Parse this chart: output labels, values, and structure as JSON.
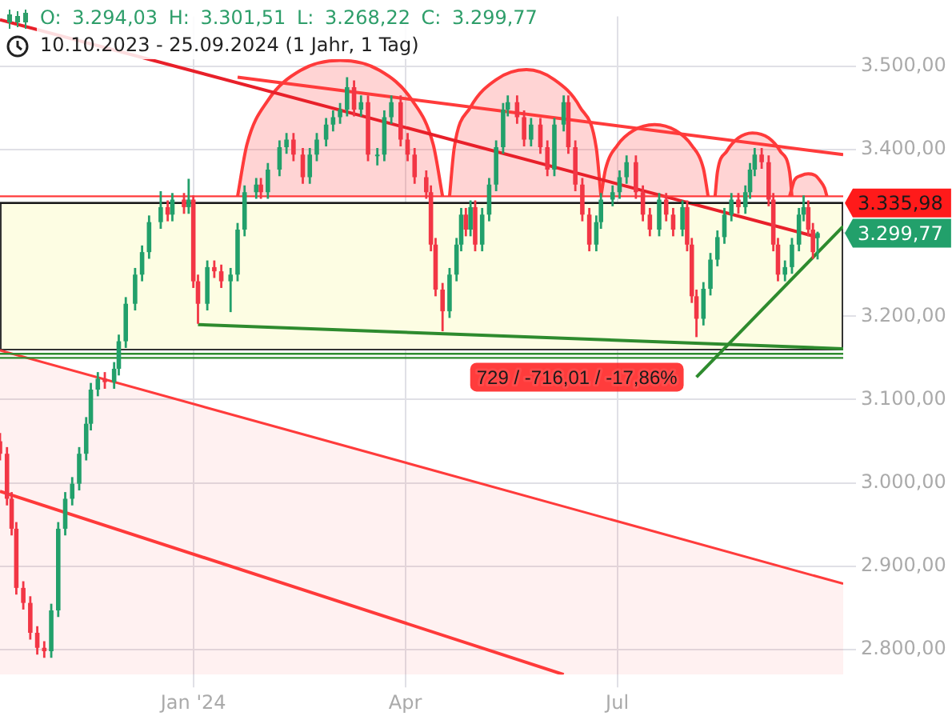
{
  "chart_data": {
    "type": "candlestick",
    "title": "O: 3.294,03 H: 3.301,51 L: 3.268,22 C: 3.299,77",
    "subtitle": "10.10.2023 - 25.09.2024 (1 Jahr, 1 Tag)",
    "x": [
      "2023-10-10",
      "2023-10-13",
      "2023-10-15",
      "2023-10-17",
      "2023-10-20",
      "2023-10-23",
      "2023-10-26",
      "2023-10-29",
      "2023-11-01",
      "2023-11-04",
      "2023-11-07",
      "2023-11-10",
      "2023-11-13",
      "2023-11-16",
      "2023-11-18",
      "2023-11-21",
      "2023-11-24",
      "2023-11-28",
      "2023-11-30",
      "2023-12-03",
      "2023-12-07",
      "2023-12-10",
      "2023-12-13",
      "2023-12-18",
      "2023-12-21",
      "2023-12-23",
      "2023-12-28",
      "2023-12-30",
      "2024-01-01",
      "2024-01-03",
      "2024-01-07",
      "2024-01-10",
      "2024-01-13",
      "2024-01-17",
      "2024-01-20",
      "2024-01-23",
      "2024-01-28",
      "2024-01-30",
      "2024-02-02",
      "2024-02-07",
      "2024-02-10",
      "2024-02-13",
      "2024-02-17",
      "2024-02-20",
      "2024-02-23",
      "2024-02-27",
      "2024-03-01",
      "2024-03-04",
      "2024-03-07",
      "2024-03-10",
      "2024-03-13",
      "2024-03-16",
      "2024-03-20",
      "2024-03-23",
      "2024-03-26",
      "2024-03-30",
      "2024-04-02",
      "2024-04-05",
      "2024-04-10",
      "2024-04-12",
      "2024-04-14",
      "2024-04-17",
      "2024-04-20",
      "2024-04-23",
      "2024-04-25",
      "2024-04-27",
      "2024-04-29",
      "2024-05-01",
      "2024-05-04",
      "2024-05-07",
      "2024-05-10",
      "2024-05-13",
      "2024-05-15",
      "2024-05-19",
      "2024-05-22",
      "2024-05-25",
      "2024-05-29",
      "2024-06-01",
      "2024-06-04",
      "2024-06-08",
      "2024-06-10",
      "2024-06-13",
      "2024-06-16",
      "2024-06-19",
      "2024-06-22",
      "2024-06-24",
      "2024-06-29",
      "2024-07-02",
      "2024-07-05",
      "2024-07-09",
      "2024-07-12",
      "2024-07-15",
      "2024-07-19",
      "2024-07-22",
      "2024-07-25",
      "2024-07-29",
      "2024-07-31",
      "2024-08-02",
      "2024-08-04",
      "2024-08-07",
      "2024-08-10",
      "2024-08-13",
      "2024-08-16",
      "2024-08-19",
      "2024-08-22",
      "2024-08-25",
      "2024-08-27",
      "2024-08-29",
      "2024-09-01",
      "2024-09-04",
      "2024-09-06",
      "2024-09-08",
      "2024-09-11",
      "2024-09-14",
      "2024-09-17",
      "2024-09-19",
      "2024-09-21",
      "2024-09-23",
      "2024-09-25"
    ],
    "ohlc": [
      [
        3050,
        3060,
        3027,
        3035
      ],
      [
        3035,
        3043,
        2973,
        2981
      ],
      [
        2981,
        2989,
        2937,
        2945
      ],
      [
        2945,
        2953,
        2866,
        2874
      ],
      [
        2874,
        2882,
        2848,
        2856
      ],
      [
        2856,
        2864,
        2812,
        2820
      ],
      [
        2820,
        2828,
        2794,
        2802
      ],
      [
        2802,
        2810,
        2790,
        2798
      ],
      [
        2798,
        2855,
        2790,
        2847
      ],
      [
        2847,
        2953,
        2839,
        2945
      ],
      [
        2945,
        2989,
        2937,
        2981
      ],
      [
        2981,
        3007,
        2973,
        2999
      ],
      [
        2999,
        3043,
        2991,
        3035
      ],
      [
        3035,
        3079,
        3027,
        3071
      ],
      [
        3071,
        3120,
        3063,
        3112
      ],
      [
        3112,
        3133,
        3104,
        3125
      ],
      [
        3125,
        3133,
        3113,
        3121
      ],
      [
        3121,
        3145,
        3113,
        3137
      ],
      [
        3137,
        3178,
        3129,
        3170
      ],
      [
        3170,
        3223,
        3162,
        3215
      ],
      [
        3215,
        3258,
        3207,
        3250
      ],
      [
        3250,
        3285,
        3242,
        3277
      ],
      [
        3277,
        3321,
        3269,
        3313
      ],
      [
        3313,
        3350,
        3305,
        3331
      ],
      [
        3331,
        3339,
        3314,
        3322
      ],
      [
        3322,
        3348,
        3314,
        3340
      ],
      [
        3340,
        3348,
        3323,
        3331
      ],
      [
        3331,
        3365,
        3323,
        3340
      ],
      [
        3340,
        3345,
        3234,
        3242
      ],
      [
        3242,
        3250,
        3191,
        3215
      ],
      [
        3215,
        3267,
        3207,
        3259
      ],
      [
        3259,
        3267,
        3246,
        3254
      ],
      [
        3254,
        3262,
        3234,
        3242
      ],
      [
        3242,
        3258,
        3205,
        3250
      ],
      [
        3250,
        3312,
        3242,
        3304
      ],
      [
        3304,
        3357,
        3296,
        3349
      ],
      [
        3349,
        3366,
        3341,
        3358
      ],
      [
        3358,
        3366,
        3341,
        3349
      ],
      [
        3349,
        3384,
        3341,
        3376
      ],
      [
        3376,
        3411,
        3368,
        3403
      ],
      [
        3403,
        3420,
        3395,
        3412
      ],
      [
        3412,
        3420,
        3386,
        3394
      ],
      [
        3394,
        3402,
        3359,
        3367
      ],
      [
        3367,
        3402,
        3359,
        3394
      ],
      [
        3394,
        3420,
        3386,
        3412
      ],
      [
        3412,
        3438,
        3404,
        3430
      ],
      [
        3430,
        3447,
        3422,
        3439
      ],
      [
        3439,
        3456,
        3431,
        3448
      ],
      [
        3448,
        3487,
        3440,
        3475
      ],
      [
        3475,
        3483,
        3440,
        3448
      ],
      [
        3448,
        3465,
        3440,
        3457
      ],
      [
        3457,
        3465,
        3386,
        3394
      ],
      [
        3394,
        3402,
        3381,
        3394
      ],
      [
        3394,
        3447,
        3386,
        3439
      ],
      [
        3439,
        3465,
        3431,
        3457
      ],
      [
        3457,
        3465,
        3404,
        3412
      ],
      [
        3412,
        3420,
        3386,
        3394
      ],
      [
        3394,
        3402,
        3359,
        3367
      ],
      [
        3367,
        3375,
        3341,
        3349
      ],
      [
        3349,
        3357,
        3278,
        3286
      ],
      [
        3286,
        3294,
        3224,
        3232
      ],
      [
        3232,
        3240,
        3182,
        3206
      ],
      [
        3206,
        3258,
        3198,
        3250
      ],
      [
        3250,
        3294,
        3242,
        3286
      ],
      [
        3286,
        3330,
        3278,
        3322
      ],
      [
        3322,
        3330,
        3296,
        3304
      ],
      [
        3304,
        3339,
        3296,
        3331
      ],
      [
        3331,
        3339,
        3278,
        3286
      ],
      [
        3286,
        3330,
        3278,
        3322
      ],
      [
        3322,
        3366,
        3314,
        3358
      ],
      [
        3358,
        3411,
        3350,
        3403
      ],
      [
        3403,
        3456,
        3395,
        3448
      ],
      [
        3448,
        3465,
        3440,
        3457
      ],
      [
        3457,
        3465,
        3431,
        3439
      ],
      [
        3439,
        3447,
        3404,
        3412
      ],
      [
        3412,
        3438,
        3404,
        3430
      ],
      [
        3430,
        3438,
        3395,
        3403
      ],
      [
        3403,
        3411,
        3368,
        3376
      ],
      [
        3376,
        3438,
        3368,
        3430
      ],
      [
        3430,
        3465,
        3422,
        3457
      ],
      [
        3457,
        3465,
        3395,
        3403
      ],
      [
        3403,
        3411,
        3350,
        3358
      ],
      [
        3358,
        3366,
        3314,
        3322
      ],
      [
        3322,
        3330,
        3278,
        3286
      ],
      [
        3286,
        3321,
        3278,
        3313
      ],
      [
        3313,
        3348,
        3305,
        3340
      ],
      [
        3340,
        3357,
        3332,
        3349
      ],
      [
        3349,
        3375,
        3341,
        3367
      ],
      [
        3367,
        3393,
        3359,
        3385
      ],
      [
        3385,
        3393,
        3341,
        3349
      ],
      [
        3349,
        3357,
        3314,
        3322
      ],
      [
        3322,
        3330,
        3296,
        3304
      ],
      [
        3304,
        3348,
        3296,
        3340
      ],
      [
        3340,
        3348,
        3314,
        3322
      ],
      [
        3322,
        3330,
        3296,
        3304
      ],
      [
        3304,
        3339,
        3296,
        3331
      ],
      [
        3331,
        3339,
        3278,
        3286
      ],
      [
        3286,
        3294,
        3216,
        3224
      ],
      [
        3224,
        3232,
        3175,
        3197
      ],
      [
        3197,
        3241,
        3189,
        3233
      ],
      [
        3233,
        3276,
        3225,
        3268
      ],
      [
        3268,
        3303,
        3260,
        3295
      ],
      [
        3295,
        3330,
        3287,
        3322
      ],
      [
        3322,
        3348,
        3314,
        3340
      ],
      [
        3340,
        3348,
        3323,
        3331
      ],
      [
        3331,
        3357,
        3323,
        3349
      ],
      [
        3349,
        3384,
        3341,
        3376
      ],
      [
        3376,
        3402,
        3368,
        3394
      ],
      [
        3394,
        3402,
        3377,
        3385
      ],
      [
        3385,
        3393,
        3332,
        3340
      ],
      [
        3340,
        3348,
        3278,
        3286
      ],
      [
        3286,
        3294,
        3242,
        3250
      ],
      [
        3250,
        3267,
        3242,
        3259
      ],
      [
        3259,
        3294,
        3251,
        3286
      ],
      [
        3286,
        3330,
        3278,
        3322
      ],
      [
        3322,
        3345,
        3314,
        3331
      ],
      [
        3331,
        3339,
        3296,
        3304
      ],
      [
        3304,
        3312,
        3269,
        3277
      ],
      [
        3294.03,
        3301.51,
        3268.22,
        3299.77
      ]
    ],
    "colors": [
      "#f23645",
      "#f23645",
      "#f23645",
      "#f23645",
      "#f23645",
      "#f23645",
      "#f23645",
      "#f23645",
      "#22a06b",
      "#22a06b",
      "#22a06b",
      "#22a06b",
      "#22a06b",
      "#22a06b",
      "#22a06b",
      "#22a06b",
      "#f23645",
      "#22a06b",
      "#22a06b",
      "#22a06b",
      "#22a06b",
      "#22a06b",
      "#22a06b",
      "#22a06b",
      "#f23645",
      "#22a06b",
      "#f23645",
      "#22a06b",
      "#f23645",
      "#f23645",
      "#22a06b",
      "#f23645",
      "#f23645",
      "#22a06b",
      "#22a06b",
      "#22a06b",
      "#22a06b",
      "#f23645",
      "#22a06b",
      "#22a06b",
      "#22a06b",
      "#f23645",
      "#f23645",
      "#22a06b",
      "#22a06b",
      "#22a06b",
      "#22a06b",
      "#22a06b",
      "#22a06b",
      "#f23645",
      "#22a06b",
      "#f23645",
      "#22a06b",
      "#22a06b",
      "#22a06b",
      "#f23645",
      "#f23645",
      "#f23645",
      "#f23645",
      "#f23645",
      "#f23645",
      "#f23645",
      "#22a06b",
      "#22a06b",
      "#22a06b",
      "#f23645",
      "#22a06b",
      "#f23645",
      "#22a06b",
      "#22a06b",
      "#22a06b",
      "#22a06b",
      "#22a06b",
      "#f23645",
      "#f23645",
      "#22a06b",
      "#f23645",
      "#f23645",
      "#22a06b",
      "#22a06b",
      "#f23645",
      "#f23645",
      "#f23645",
      "#f23645",
      "#22a06b",
      "#22a06b",
      "#22a06b",
      "#22a06b",
      "#22a06b",
      "#f23645",
      "#f23645",
      "#f23645",
      "#22a06b",
      "#f23645",
      "#f23645",
      "#22a06b",
      "#f23645",
      "#f23645",
      "#f23645",
      "#22a06b",
      "#22a06b",
      "#22a06b",
      "#22a06b",
      "#22a06b",
      "#f23645",
      "#22a06b",
      "#22a06b",
      "#22a06b",
      "#f23645",
      "#f23645",
      "#f23645",
      "#f23645",
      "#22a06b",
      "#22a06b",
      "#22a06b",
      "#22a06b",
      "#f23645",
      "#f23645",
      "#22a06b"
    ],
    "series": [
      {
        "type": "line",
        "color": "#e8202a",
        "x": [
          "2023-10-10",
          "2024-09-25"
        ],
        "values": [
          3556,
          3295
        ]
      },
      {
        "type": "line",
        "color": "#ff3b3b",
        "x": [
          "2024-01-20",
          "2024-10-06"
        ],
        "values": [
          3487,
          3394
        ]
      },
      {
        "type": "line",
        "color": "#2e8b2e",
        "x": [
          "2024-01-03",
          "2024-10-06"
        ],
        "values": [
          3190,
          3161
        ]
      },
      {
        "type": "line",
        "color": "#2e8b2e",
        "x": [
          "2024-08-04",
          "2024-10-06"
        ],
        "values": [
          3127,
          3308
        ]
      },
      {
        "type": "area",
        "color": "#ff3b3b",
        "x": [
          "2023-10-10",
          "2024-10-06"
        ],
        "values": [
          3159,
          2879
        ]
      },
      {
        "type": "line",
        "color": "#ff3b3b",
        "x": [
          "2023-10-10",
          "2024-06-08"
        ],
        "values": [
          2990,
          2770
        ]
      },
      {
        "type": "line",
        "color": "#ff3b3b",
        "x": [
          "2024-01-20",
          "2024-01-24",
          "2024-02-02",
          "2024-02-16",
          "2024-03-04",
          "2024-03-21",
          "2024-04-04",
          "2024-04-13",
          "2024-04-17"
        ],
        "values": [
          3344,
          3406,
          3459,
          3495,
          3507,
          3495,
          3459,
          3406,
          3344
        ],
        "lower": [
          3344,
          3344,
          3344,
          3344,
          3344,
          3344,
          3344,
          3344,
          3344
        ],
        "upper": [
          3344,
          3406,
          3459,
          3495,
          3507,
          3495,
          3459,
          3406,
          3344
        ]
      },
      {
        "type": "line",
        "color": "#ff3b3b",
        "x": [
          "2024-04-20",
          "2024-04-22",
          "2024-04-29",
          "2024-05-10",
          "2024-05-23",
          "2024-06-04",
          "2024-06-15",
          "2024-06-22",
          "2024-06-24"
        ],
        "values": [
          3344,
          3402,
          3451,
          3484,
          3496,
          3484,
          3451,
          3402,
          3344
        ],
        "lower": [
          3344,
          3344,
          3344,
          3344,
          3344,
          3344,
          3344,
          3344,
          3344
        ],
        "upper": [
          3344,
          3402,
          3451,
          3484,
          3496,
          3484,
          3451,
          3402,
          3344
        ]
      },
      {
        "type": "line",
        "color": "#ff3b3b",
        "x": [
          "2024-06-24",
          "2024-06-26",
          "2024-07-01",
          "2024-07-08",
          "2024-07-17",
          "2024-07-26",
          "2024-08-02",
          "2024-08-07",
          "2024-08-09"
        ],
        "values": [
          3344,
          3377,
          3405,
          3423,
          3430,
          3423,
          3405,
          3377,
          3344
        ],
        "lower": [
          3344,
          3344,
          3344,
          3344,
          3344,
          3344,
          3344,
          3344,
          3344
        ],
        "upper": [
          3344,
          3377,
          3405,
          3423,
          3430,
          3423,
          3405,
          3377,
          3344
        ]
      },
      {
        "type": "line",
        "color": "#ff3b3b",
        "x": [
          "2024-08-12",
          "2024-08-13",
          "2024-08-17",
          "2024-08-22",
          "2024-08-28",
          "2024-09-04",
          "2024-09-09",
          "2024-09-13",
          "2024-09-14"
        ],
        "values": [
          3344,
          3373,
          3398,
          3414,
          3420,
          3414,
          3398,
          3373,
          3344
        ],
        "lower": [
          3344,
          3344,
          3344,
          3344,
          3344,
          3344,
          3344,
          3344,
          3344
        ],
        "upper": [
          3344,
          3373,
          3398,
          3414,
          3420,
          3414,
          3398,
          3373,
          3344
        ]
      },
      {
        "type": "line",
        "color": "#ff3b3b",
        "x": [
          "2024-09-13",
          "2024-09-14",
          "2024-09-15",
          "2024-09-18",
          "2024-09-21",
          "2024-09-24",
          "2024-09-26",
          "2024-09-28",
          "2024-09-29"
        ],
        "values": [
          3344,
          3354,
          3363,
          3369,
          3371,
          3369,
          3363,
          3354,
          3344
        ],
        "lower": [
          3344,
          3344,
          3344,
          3344,
          3344,
          3344,
          3344,
          3344,
          3344
        ],
        "upper": [
          3344,
          3354,
          3363,
          3369,
          3371,
          3369,
          3363,
          3354,
          3344
        ]
      }
    ],
    "bands": [
      {
        "axis": "y",
        "from": 3160,
        "to": 3335.98,
        "color": "#fdfde3"
      }
    ],
    "ref_lines": [
      {
        "axis": "y",
        "value": 3344,
        "color": "#ff3b3b"
      },
      {
        "axis": "y",
        "value": 3335.98,
        "label": "3.335,98",
        "color": "#1a1a1a"
      },
      {
        "axis": "y",
        "value": 3155,
        "color": "#2e8b2e"
      },
      {
        "axis": "y",
        "value": 3150,
        "color": "#2e8b2e"
      }
    ],
    "annotations": [
      "729 / -716,01 / -17,86%",
      {
        "text": "3.299,77",
        "x": "2024-10-06",
        "y": 3299.77
      }
    ],
    "xlim": [
      "2023-10-10",
      "2024-10-06"
    ],
    "xticks": [
      {
        "value": "2024-01-01",
        "label": "Jan '24"
      },
      {
        "value": "2024-04-01",
        "label": "Apr"
      },
      {
        "value": "2024-07-01",
        "label": "Jul"
      }
    ],
    "ylim": [
      2770,
      3560
    ],
    "yticks": [
      {
        "value": 2800,
        "label": "2.800,00"
      },
      {
        "value": 2900,
        "label": "2.900,00"
      },
      {
        "value": 3000,
        "label": "3.000,00"
      },
      {
        "value": 3100,
        "label": "3.100,00"
      },
      {
        "value": 3200,
        "label": "3.200,00"
      },
      {
        "value": 3300,
        "label": null
      },
      {
        "value": 3400,
        "label": "3.400,00"
      },
      {
        "value": 3500,
        "label": "3.500,00"
      }
    ],
    "grid": true
  }
}
